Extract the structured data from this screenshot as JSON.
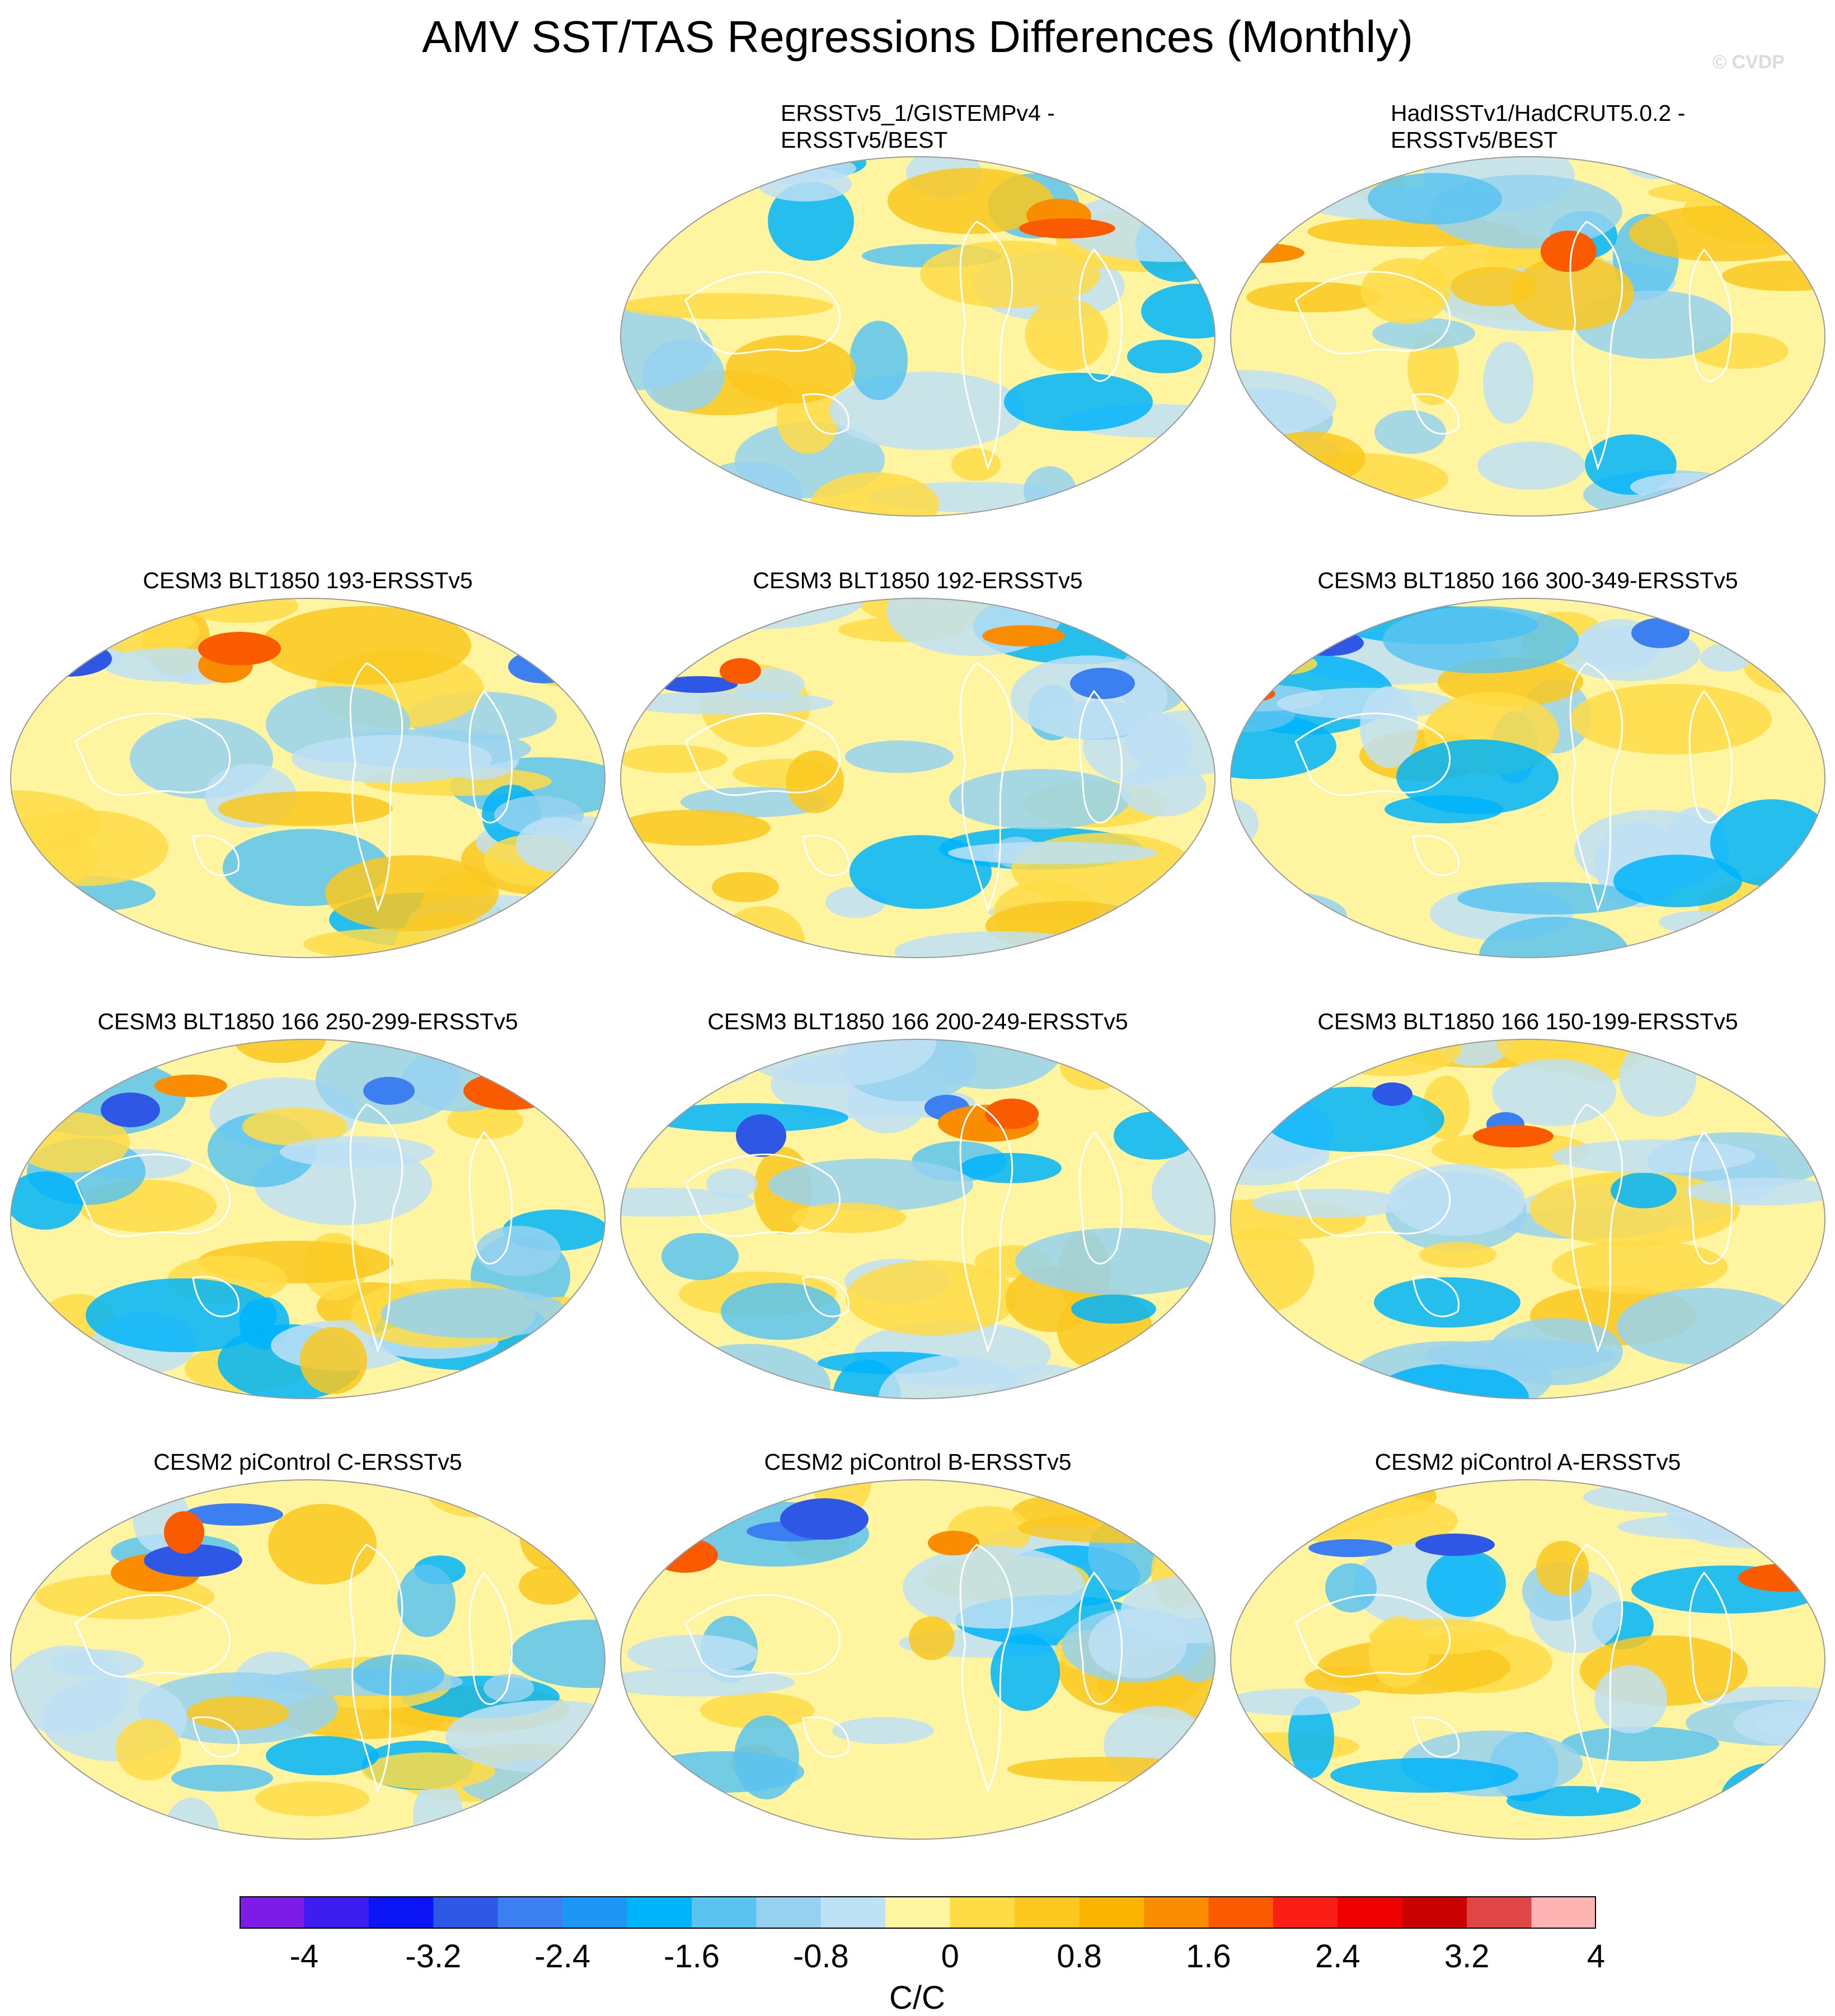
{
  "title": "AMV SST/TAS Regressions Differences (Monthly)",
  "watermark": "© CVDP",
  "panels": [
    {
      "title": "ERSSTv5_1/GISTEMPv4 -\nERSSTv5/BEST"
    },
    {
      "title": "HadISSTv1/HadCRUT5.0.2 -\nERSSTv5/BEST"
    },
    {
      "title": "CESM3 BLT1850 193-ERSSTv5"
    },
    {
      "title": "CESM3 BLT1850 192-ERSSTv5"
    },
    {
      "title": "CESM3 BLT1850 166 300-349-ERSSTv5"
    },
    {
      "title": "CESM3 BLT1850 166 250-299-ERSSTv5"
    },
    {
      "title": "CESM3 BLT1850 166 200-249-ERSSTv5"
    },
    {
      "title": "CESM3 BLT1850 166 150-199-ERSSTv5"
    },
    {
      "title": "CESM2 piControl C-ERSSTv5"
    },
    {
      "title": "CESM2 piControl B-ERSSTv5"
    },
    {
      "title": "CESM2 piControl A-ERSSTv5"
    }
  ],
  "colorbar": {
    "units": "C/C",
    "tick_labels": [
      "-4",
      "-3.2",
      "-2.4",
      "-1.6",
      "-0.8",
      "0",
      "0.8",
      "1.6",
      "2.4",
      "3.2",
      "4"
    ],
    "colors": [
      "#7d1ce6",
      "#3c1ef0",
      "#0a14f5",
      "#2f57e6",
      "#3c7ff0",
      "#1e96f5",
      "#00b4fa",
      "#5ac3f0",
      "#96d2f0",
      "#bee1f5",
      "#fff5a0",
      "#ffdc46",
      "#fac81e",
      "#fab400",
      "#fa8c00",
      "#fa5a00",
      "#fa1e14",
      "#ee0000",
      "#c80000",
      "#e04646",
      "#ffb4b4"
    ]
  }
}
